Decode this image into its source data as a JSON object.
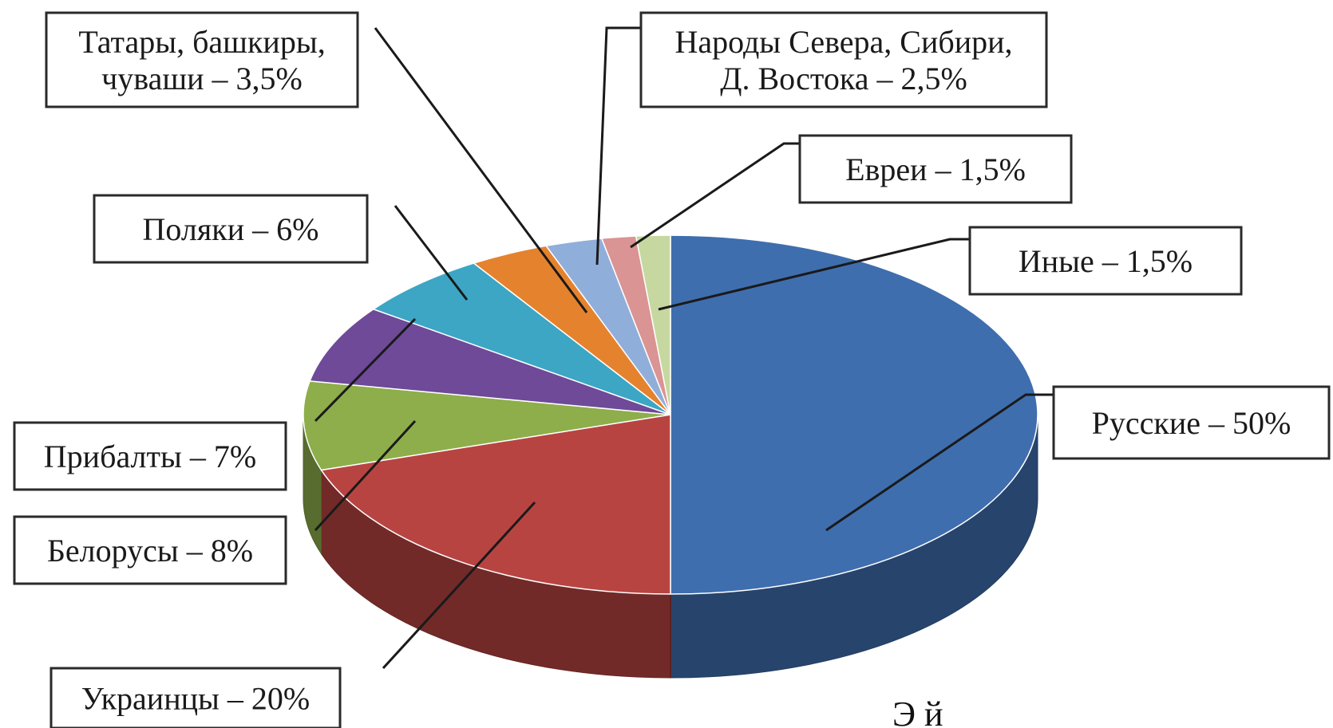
{
  "chart_data": {
    "type": "pie",
    "slices": [
      {
        "label": "Русские – 50%",
        "value": 50,
        "color": "#3F6EAE"
      },
      {
        "label": "Украинцы – 20%",
        "value": 20,
        "color": "#B84442"
      },
      {
        "label": "Белорусы – 8%",
        "value": 8,
        "color": "#8DAE4A"
      },
      {
        "label": "Прибалты – 7%",
        "value": 7,
        "color": "#6E4A98"
      },
      {
        "label": "Поляки – 6%",
        "value": 6,
        "color": "#3CA6C4"
      },
      {
        "label": "Татары, башкиры, чуваши – 3,5%",
        "value": 3.5,
        "color": "#E5822E"
      },
      {
        "label": "Народы Севера, Сибири, Д. Востока – 2,5%",
        "value": 2.5,
        "color": "#90AEDA"
      },
      {
        "label": "Евреи – 1,5%",
        "value": 1.5,
        "color": "#D99493"
      },
      {
        "label": "Иные – 1,5%",
        "value": 1.5,
        "color": "#C6D89F"
      }
    ]
  },
  "labels": [
    {
      "lines": [
        "Русские – 50%"
      ]
    },
    {
      "lines": [
        "Украинцы – 20%"
      ]
    },
    {
      "lines": [
        "Белорусы – 8%"
      ]
    },
    {
      "lines": [
        "Прибалты – 7%"
      ]
    },
    {
      "lines": [
        "Поляки – 6%"
      ]
    },
    {
      "lines": [
        "Татары, башкиры,",
        "чуваши – 3,5%"
      ]
    },
    {
      "lines": [
        "Народы Севера, Сибири,",
        "Д. Востока – 2,5%"
      ]
    },
    {
      "lines": [
        "Евреи – 1,5%"
      ]
    },
    {
      "lines": [
        "Иные – 1,5%"
      ]
    }
  ],
  "caption": "Э          й"
}
